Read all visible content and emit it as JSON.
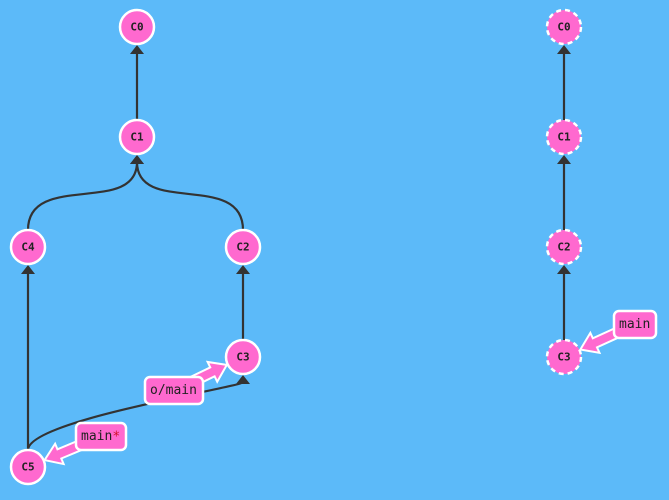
{
  "colors": {
    "background": "#5cbaf9",
    "commit": "#ff69cf",
    "edge": "#333333",
    "asterisk": "#d0102a"
  },
  "local": {
    "commits": [
      {
        "id": "C0",
        "parents": []
      },
      {
        "id": "C1",
        "parents": [
          "C0"
        ]
      },
      {
        "id": "C2",
        "parents": [
          "C1"
        ]
      },
      {
        "id": "C3",
        "parents": [
          "C2"
        ]
      },
      {
        "id": "C4",
        "parents": [
          "C1"
        ]
      },
      {
        "id": "C5",
        "parents": [
          "C4",
          "C3"
        ]
      }
    ],
    "branches": [
      {
        "name": "o/main",
        "target": "C3"
      },
      {
        "name": "main",
        "target": "C5",
        "head": true,
        "head_marker": "*"
      }
    ]
  },
  "remote": {
    "commits": [
      {
        "id": "C0",
        "parents": []
      },
      {
        "id": "C1",
        "parents": [
          "C0"
        ]
      },
      {
        "id": "C2",
        "parents": [
          "C1"
        ]
      },
      {
        "id": "C3",
        "parents": [
          "C2"
        ]
      }
    ],
    "branches": [
      {
        "name": "main",
        "target": "C3"
      }
    ]
  }
}
